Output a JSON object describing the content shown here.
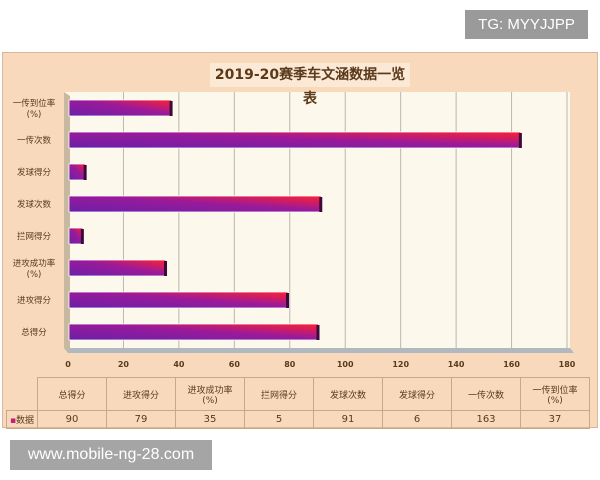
{
  "watermark_top": "TG: MYYJJPP",
  "watermark_bottom": "www.mobile-ng-28.com",
  "chart_data": {
    "type": "bar",
    "orientation": "horizontal",
    "title": "2019-20赛季车文涵数据一览表",
    "categories": [
      "总得分",
      "进攻得分",
      "进攻成功率(%)",
      "拦网得分",
      "发球次数",
      "发球得分",
      "一传次数",
      "一传到位率(%)"
    ],
    "series": [
      {
        "name": "数据",
        "values": [
          90,
          79,
          35,
          5,
          91,
          6,
          163,
          37
        ]
      }
    ],
    "xlim": [
      0,
      180
    ],
    "xticks": [
      0,
      20,
      40,
      60,
      80,
      100,
      120,
      140,
      160,
      180
    ],
    "grid": true,
    "legend": "data-table-left",
    "colors": {
      "bar_start": "#6a1fa8",
      "bar_end": "#ff2030",
      "plot_bg": "#fdf8ec",
      "panel_bg": "#f8d9bc"
    }
  }
}
